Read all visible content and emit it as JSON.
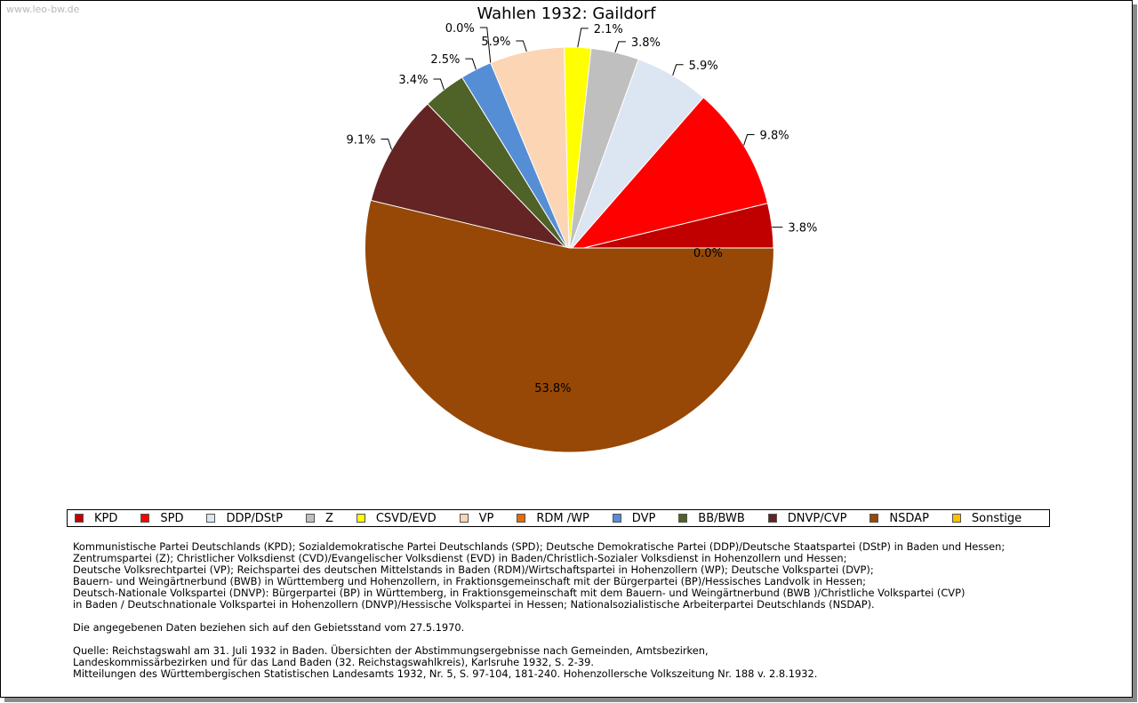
{
  "watermark": "www.leo-bw.de",
  "chart_data": {
    "type": "pie",
    "title": "Wahlen 1932: Gaildorf",
    "slices": [
      {
        "label": "KPD",
        "value": 3.8,
        "display": "3.8%",
        "color": "#c00000"
      },
      {
        "label": "SPD",
        "value": 9.8,
        "display": "9.8%",
        "color": "#ff0000"
      },
      {
        "label": "DDP/DStP",
        "value": 5.9,
        "display": "5.9%",
        "color": "#dce6f2"
      },
      {
        "label": "Z",
        "value": 3.8,
        "display": "3.8%",
        "color": "#bfbfbf"
      },
      {
        "label": "CSVD/EVD",
        "value": 2.1,
        "display": "2.1%",
        "color": "#ffff00"
      },
      {
        "label": "VP",
        "value": 5.9,
        "display": "5.9%",
        "color": "#fcd5b5"
      },
      {
        "label": "RDM /WP",
        "value": 0.0,
        "display": "0.0%",
        "color": "#e46c0a"
      },
      {
        "label": "DVP",
        "value": 2.5,
        "display": "2.5%",
        "color": "#558ed5"
      },
      {
        "label": "BB/BWB",
        "value": 3.4,
        "display": "3.4%",
        "color": "#4f6228"
      },
      {
        "label": "DNVP/CVP",
        "value": 9.1,
        "display": "9.1%",
        "color": "#632423"
      },
      {
        "label": "NSDAP",
        "value": 53.8,
        "display": "53.8%",
        "color": "#974806"
      },
      {
        "label": "Sonstige",
        "value": 0.0,
        "display": "0.0%",
        "color": "#ffc000"
      }
    ],
    "legend_position": "bottom"
  },
  "notes": {
    "parties": [
      "Kommunistische Partei Deutschlands (KPD); Sozialdemokratische Partei Deutschlands (SPD); Deutsche Demokratische Partei (DDP)/Deutsche Staatspartei (DStP) in Baden und Hessen;",
      "Zentrumspartei (Z); Christlicher Volksdienst (CVD)/Evangelischer Volksdienst (EVD) in Baden/Christlich-Sozialer Volksdienst in Hohenzollern und Hessen;",
      "Deutsche Volksrechtpartei (VP); Reichspartei des deutschen Mittelstands in Baden (RDM)/Wirtschaftspartei in Hohenzollern (WP); Deutsche Volkspartei (DVP);",
      "Bauern- und Weingärtnerbund (BWB) in Württemberg und Hohenzollern, in Fraktionsgemeinschaft mit der Bürgerpartei (BP)/Hessisches Landvolk in Hessen;",
      "Deutsch-Nationale Volkspartei (DNVP): Bürgerpartei (BP) in Württemberg, in Fraktionsgemeinschaft mit dem Bauern- und Weingärtnerbund (BWB )/Christliche Volkspartei (CVP)",
      "in Baden / Deutschnationale Volkspartei in Hohenzollern (DNVP)/Hessische Volkspartei in Hessen; Nationalsozialistische Arbeiterpartei Deutschlands (NSDAP)."
    ],
    "territory": "Die angegebenen Daten beziehen sich auf den Gebietsstand vom 27.5.1970.",
    "source": [
      "Quelle: Reichstagswahl am 31. Juli 1932 in Baden. Übersichten der Abstimmungsergebnisse nach Gemeinden, Amtsbezirken,",
      "Landeskommissärbezirken und für das Land Baden (32. Reichstagswahlkreis), Karlsruhe 1932, S. 2-39.",
      "Mitteilungen des Württembergischen Statistischen Landesamts 1932, Nr. 5, S. 97-104, 181-240. Hohenzollersche Volkszeitung Nr. 188 v. 2.8.1932."
    ]
  }
}
